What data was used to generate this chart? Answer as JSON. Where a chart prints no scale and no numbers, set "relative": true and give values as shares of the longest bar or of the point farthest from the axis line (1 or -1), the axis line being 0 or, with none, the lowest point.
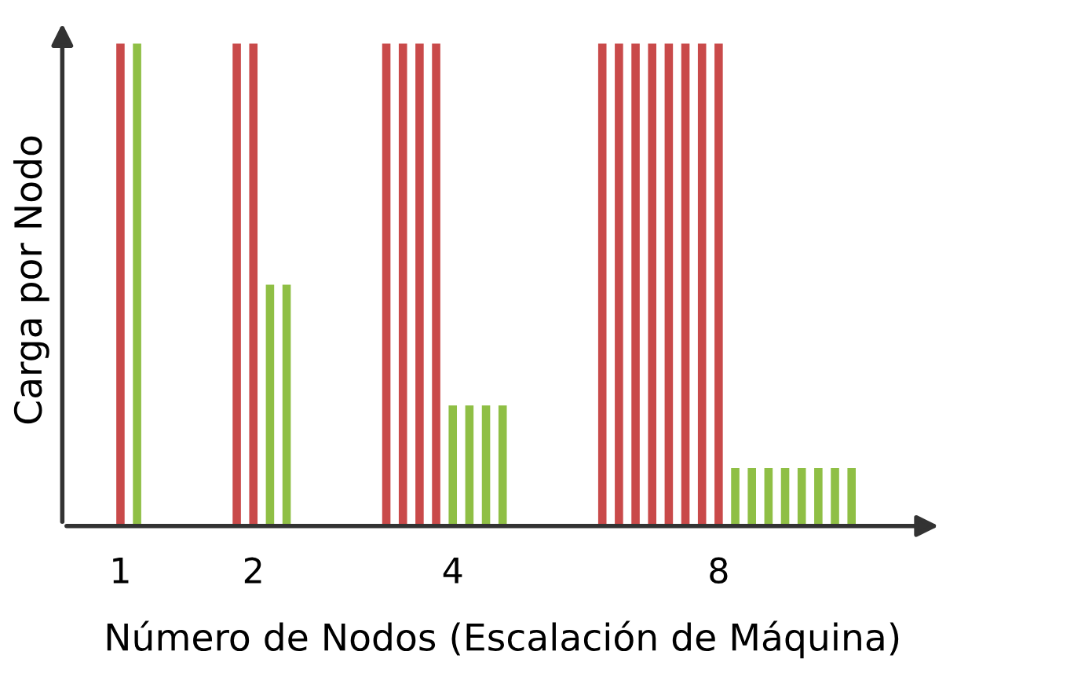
{
  "chart_data": {
    "type": "bar",
    "relative": true,
    "categories": [
      null,
      null,
      null,
      "1",
      null,
      null,
      null,
      null,
      null,
      null,
      null,
      "2",
      null,
      null,
      null,
      null,
      null,
      null,
      null,
      null,
      null,
      null,
      null,
      "4",
      null,
      null,
      null,
      null,
      null,
      null,
      null,
      null,
      null,
      null,
      null,
      null,
      null,
      null,
      null,
      "8",
      null,
      null,
      null,
      null,
      null,
      null,
      null,
      null,
      null,
      null,
      null,
      null,
      null
    ],
    "xlabel": "Número de Nodos (Escalación de Máquina)",
    "ylabel": "Carga por Nodo",
    "series": [
      {
        "color": "#c94a4a",
        "values": [
          null,
          null,
          null,
          1,
          null,
          null,
          null,
          null,
          null,
          null,
          1,
          1,
          null,
          null,
          null,
          null,
          null,
          null,
          null,
          1,
          1,
          1,
          1,
          null,
          null,
          null,
          null,
          null,
          null,
          null,
          null,
          null,
          1,
          1,
          1,
          1,
          1,
          1,
          1,
          1,
          null,
          null,
          null,
          null,
          null,
          null,
          null,
          null,
          null,
          null,
          null,
          null,
          null
        ]
      },
      {
        "color": "#8fbf45",
        "values": [
          null,
          null,
          null,
          null,
          1,
          null,
          null,
          null,
          null,
          null,
          null,
          null,
          0.5,
          0.5,
          null,
          null,
          null,
          null,
          null,
          null,
          null,
          null,
          null,
          0.25,
          0.25,
          0.25,
          0.25,
          null,
          null,
          null,
          null,
          null,
          null,
          null,
          null,
          null,
          null,
          null,
          null,
          null,
          0.12,
          0.12,
          0.12,
          0.12,
          0.12,
          0.12,
          0.12,
          0.12,
          null,
          null,
          null,
          null,
          null
        ]
      }
    ]
  }
}
